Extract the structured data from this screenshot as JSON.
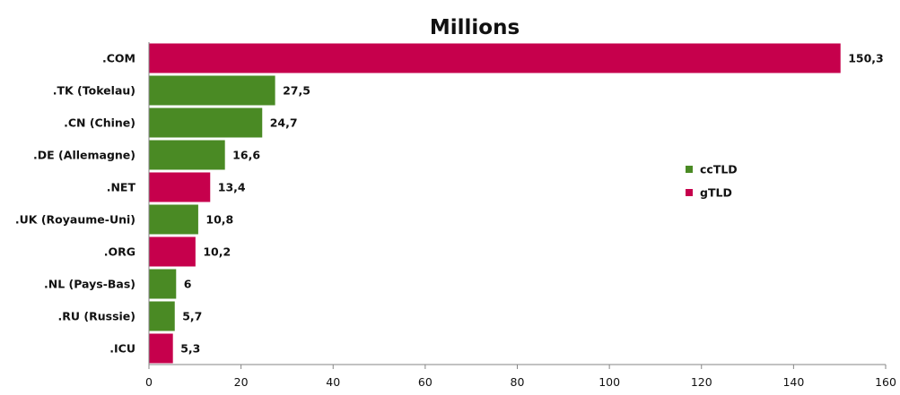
{
  "chart_data": {
    "type": "bar",
    "orientation": "horizontal",
    "title": "Millions",
    "xlabel": "",
    "ylabel": "",
    "xlim": [
      0,
      160
    ],
    "x_ticks": [
      0,
      20,
      40,
      60,
      80,
      100,
      120,
      140,
      160
    ],
    "grid": false,
    "legend_position": "right",
    "decimal_separator": ",",
    "categories": [
      ".COM",
      ".TK (Tokelau)",
      ".CN (Chine)",
      ".DE (Allemagne)",
      ".NET",
      ".UK (Royaume-Uni)",
      ".ORG",
      ".NL (Pays-Bas)",
      ".RU (Russie)",
      ".ICU"
    ],
    "values": [
      150.3,
      27.5,
      24.7,
      16.6,
      13.4,
      10.8,
      10.2,
      6,
      5.7,
      5.3
    ],
    "value_labels": [
      "150,3",
      "27,5",
      "24,7",
      "16,6",
      "13,4",
      "10,8",
      "10,2",
      "6",
      "5,7",
      "5,3"
    ],
    "groups": [
      "gTLD",
      "ccTLD",
      "ccTLD",
      "ccTLD",
      "gTLD",
      "ccTLD",
      "gTLD",
      "ccTLD",
      "ccTLD",
      "gTLD"
    ],
    "legend": [
      {
        "name": "ccTLD",
        "color": "#4a8a24"
      },
      {
        "name": "gTLD",
        "color": "#c6004c"
      }
    ]
  }
}
